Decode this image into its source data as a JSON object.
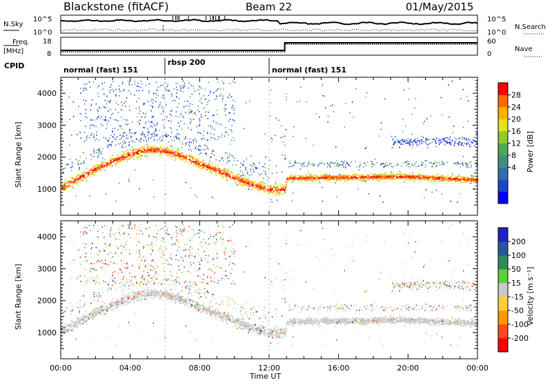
{
  "header": {
    "station": "Blackstone (fitACF)",
    "beam": "Beam 22",
    "date": "01/May/2015"
  },
  "noise_panel": {
    "left_label": "N.Sky",
    "left_ticks": [
      "10^5",
      "10^0"
    ],
    "right_ticks": [
      "10^5",
      "10^0"
    ],
    "right_label": "N.Search"
  },
  "freq_panel": {
    "left_label_top": "Freq.",
    "left_label_bottom": "[MHz]",
    "left_ticks": [
      "18",
      "8"
    ],
    "right_ticks": [
      "60",
      "0"
    ],
    "right_label": "Nave"
  },
  "cpid": {
    "label": "CPID",
    "segments": [
      {
        "label": "normal (fast) 151",
        "start_hour": 0
      },
      {
        "label": "rbsp 200",
        "start_hour": 6
      },
      {
        "label": "normal (fast) 151",
        "start_hour": 12
      }
    ]
  },
  "chart_data": [
    {
      "type": "heatmap",
      "quantity": "Power",
      "ylabel": "Slant Range [km]",
      "ylim": [
        180,
        4500
      ],
      "y_ticks": [
        "1000",
        "2000",
        "3000",
        "4000"
      ],
      "x_ticks": [
        "00:00",
        "04:00",
        "08:00",
        "12:00",
        "16:00",
        "20:00",
        "00:00"
      ],
      "xlim_hours": [
        0,
        24
      ],
      "colorbar": {
        "label": "Power [dB]",
        "ticks": [
          "28",
          "24",
          "20",
          "16",
          "12",
          "8",
          "4"
        ],
        "range": [
          0,
          30
        ],
        "colors": [
          "#0000ff",
          "#1c47c8",
          "#2e6fa6",
          "#3f8f7f",
          "#4ea94f",
          "#8ccc2a",
          "#e6e020",
          "#ffb000",
          "#ff6a00",
          "#ff0000"
        ]
      },
      "scatter_band_center_km": [
        [
          0.0,
          1050
        ],
        [
          1.0,
          1350
        ],
        [
          2.0,
          1650
        ],
        [
          3.0,
          1900
        ],
        [
          4.0,
          2100
        ],
        [
          5.0,
          2250
        ],
        [
          6.0,
          2200
        ],
        [
          7.0,
          2050
        ],
        [
          8.0,
          1800
        ],
        [
          9.0,
          1600
        ],
        [
          10.0,
          1350
        ],
        [
          11.0,
          1150
        ],
        [
          12.0,
          1000
        ],
        [
          12.9,
          1000
        ],
        [
          13.0,
          1350
        ],
        [
          16.0,
          1380
        ],
        [
          20.0,
          1400
        ],
        [
          24.0,
          1300
        ]
      ]
    },
    {
      "type": "heatmap",
      "quantity": "Velocity",
      "ylabel": "Slant Range [km]",
      "ylim": [
        180,
        4500
      ],
      "y_ticks": [
        "1000",
        "2000",
        "3000",
        "4000"
      ],
      "x_ticks": [
        "00:00",
        "04:00",
        "08:00",
        "12:00",
        "16:00",
        "20:00",
        "00:00"
      ],
      "xlabel": "Time UT",
      "colorbar": {
        "label": "Velocity [m s⁻¹]",
        "ticks": [
          "200",
          "100",
          "50",
          "15",
          "-15",
          "-50",
          "-100",
          "-200"
        ],
        "colors": [
          "#1e22c0",
          "#2a56a0",
          "#2e8b57",
          "#5ad03a",
          "#c8c8c4",
          "#ffcf3a",
          "#ff9a00",
          "#ff4a1a",
          "#ff0000"
        ]
      }
    }
  ],
  "colors": {
    "ground_scatter": "#c8c8c4",
    "axis": "#000000"
  }
}
